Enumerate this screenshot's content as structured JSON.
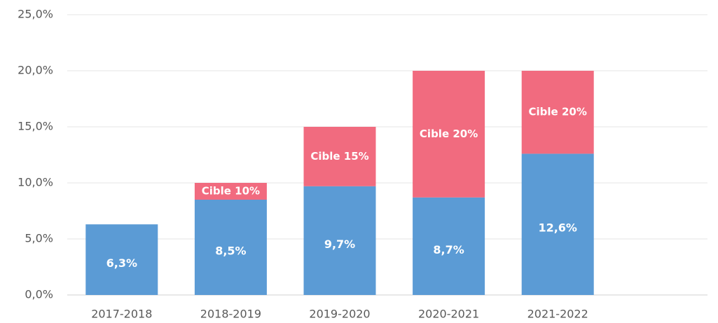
{
  "chart_data": {
    "type": "stacked_bar",
    "categories": [
      "2017-2018",
      "2018-2019",
      "2019-2020",
      "2020-2021",
      "2021-2022"
    ],
    "series": [
      {
        "color": "#5b9bd5",
        "values": [
          6.3,
          8.5,
          9.7,
          8.7,
          12.6
        ],
        "value_labels": [
          "6,3%",
          "8,5%",
          "9,7%",
          "8,7%",
          "12,6%"
        ]
      },
      {
        "color": "#f16b7f",
        "values": [
          null,
          1.5,
          5.3,
          11.3,
          7.4
        ]
      }
    ],
    "annotations": [
      null,
      "Cible 10%",
      "Cible 15%",
      "Cible 20%",
      "Cible 20%"
    ],
    "ylim": [
      0,
      25
    ],
    "yticks": [
      {
        "value": 0,
        "label": "0,0%"
      },
      {
        "value": 5,
        "label": "5,0%"
      },
      {
        "value": 10,
        "label": "10,0%"
      },
      {
        "value": 15,
        "label": "15,0%"
      },
      {
        "value": 20,
        "label": "20,0%"
      },
      {
        "value": 25,
        "label": "25,0%"
      }
    ],
    "grid": true
  }
}
